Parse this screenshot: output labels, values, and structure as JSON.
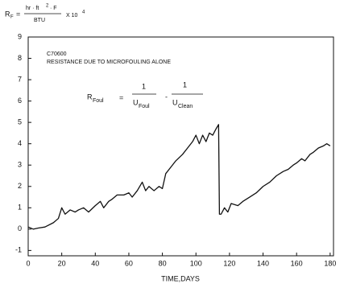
{
  "chart_data": {
    "type": "line",
    "ylabel": {
      "symbol": "R",
      "subscript": "F",
      "equals": "=",
      "numerator": "hr · ft",
      "numerator_power": "2",
      "numerator_tail": "· F",
      "denominator": "BTU",
      "multiplier": "X 10",
      "multiplier_power": "4"
    },
    "annotations": {
      "id": "C70600",
      "text": "RESISTANCE DUE TO MICROFOULING ALONE"
    },
    "formula": {
      "lhs": "R",
      "lhs_sub": "Foul",
      "equals": "=",
      "num1": "1",
      "den1": "U",
      "den1_sub": "Foul",
      "minus": "-",
      "num2": "1",
      "den2": "U",
      "den2_sub": "Clean"
    },
    "xlabel": "TIME,DAYS",
    "x": [
      0,
      3,
      6,
      10,
      15,
      18,
      20,
      22,
      25,
      28,
      30,
      33,
      36,
      40,
      43,
      45,
      48,
      50,
      53,
      57,
      60,
      62,
      65,
      68,
      70,
      72,
      75,
      78,
      80,
      82,
      85,
      88,
      92,
      95,
      98,
      100,
      102,
      104,
      106,
      108,
      110,
      112,
      113.5,
      114,
      115,
      117,
      119,
      121,
      125,
      128,
      132,
      136,
      140,
      144,
      148,
      152,
      155,
      158,
      160,
      163,
      165,
      168,
      170,
      173,
      176,
      178,
      180
    ],
    "values": [
      0.1,
      0,
      0.05,
      0.1,
      0.3,
      0.5,
      1.0,
      0.7,
      0.9,
      0.8,
      0.9,
      1.0,
      0.8,
      1.1,
      1.3,
      1.0,
      1.3,
      1.4,
      1.6,
      1.6,
      1.7,
      1.5,
      1.8,
      2.2,
      1.8,
      2.0,
      1.8,
      2.0,
      1.9,
      2.6,
      2.9,
      3.2,
      3.5,
      3.8,
      4.1,
      4.4,
      4.0,
      4.4,
      4.1,
      4.5,
      4.4,
      4.7,
      4.9,
      0.7,
      0.7,
      1.0,
      0.8,
      1.2,
      1.1,
      1.3,
      1.5,
      1.7,
      2.0,
      2.2,
      2.5,
      2.7,
      2.8,
      3.0,
      3.1,
      3.3,
      3.2,
      3.5,
      3.6,
      3.8,
      3.9,
      4.0,
      3.9
    ],
    "color": "#111111",
    "xlim": [
      0,
      182
    ],
    "ylim": [
      -1.25,
      9
    ],
    "xticks": [
      0,
      20,
      40,
      60,
      80,
      100,
      120,
      140,
      160,
      180
    ],
    "yticks": [
      -1,
      0,
      1,
      2,
      3,
      4,
      5,
      6,
      7,
      8,
      9
    ],
    "grid": false
  }
}
